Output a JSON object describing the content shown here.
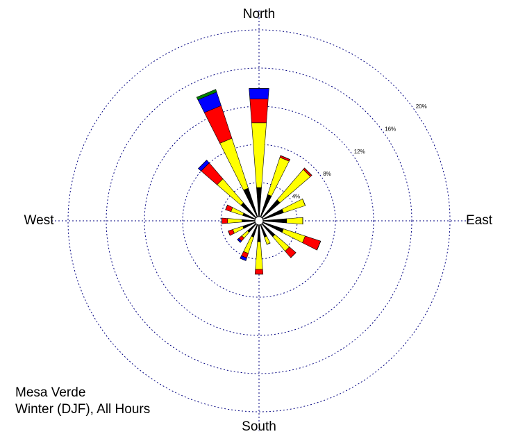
{
  "chart_data": {
    "type": "windrose",
    "categories": [
      "North",
      null,
      null,
      null,
      "East",
      null,
      null,
      null,
      "South",
      null,
      null,
      null,
      "West",
      null,
      null,
      null
    ],
    "series": [
      {
        "color": "#000000",
        "values": [
          3.5,
          2.9,
          2.9,
          2.7,
          2.9,
          2.7,
          2.2,
          1.8,
          2.2,
          1.8,
          1.6,
          1.8,
          1.8,
          1.8,
          2.5,
          3.6
        ]
      },
      {
        "color": "#ffff00",
        "values": [
          6.8,
          4.1,
          4.2,
          2.4,
          1.7,
          2.4,
          2.0,
          0.8,
          2.9,
          1.8,
          0.8,
          1.1,
          1.5,
          1.3,
          3.3,
          5.5
        ]
      },
      {
        "color": "#ff0000",
        "values": [
          2.5,
          0.2,
          0.2,
          0,
          0,
          1.7,
          0.9,
          0,
          0.5,
          0.5,
          0.4,
          0.5,
          0.6,
          0.6,
          2.2,
          3.6
        ]
      },
      {
        "color": "#0000ff",
        "values": [
          1.1,
          0,
          0,
          0,
          0,
          0,
          0,
          0,
          0,
          0.3,
          0.2,
          0,
          0,
          0,
          0.4,
          1.5
        ]
      },
      {
        "color": "#008000",
        "values": [
          0,
          0,
          0,
          0,
          0,
          0,
          0,
          0,
          0,
          0,
          0,
          0,
          0,
          0,
          0,
          0.3
        ]
      }
    ],
    "rlim": [
      0,
      20
    ],
    "rticks": [
      {
        "value": 4,
        "label": "4%"
      },
      {
        "value": 8,
        "label": "8%"
      },
      {
        "value": 12,
        "label": "12%"
      },
      {
        "value": 16,
        "label": "16%"
      },
      {
        "value": 20,
        "label": "20%"
      }
    ],
    "grid": true,
    "annotations": [
      "Mesa Verde",
      "Winter (DJF), All Hours"
    ]
  }
}
